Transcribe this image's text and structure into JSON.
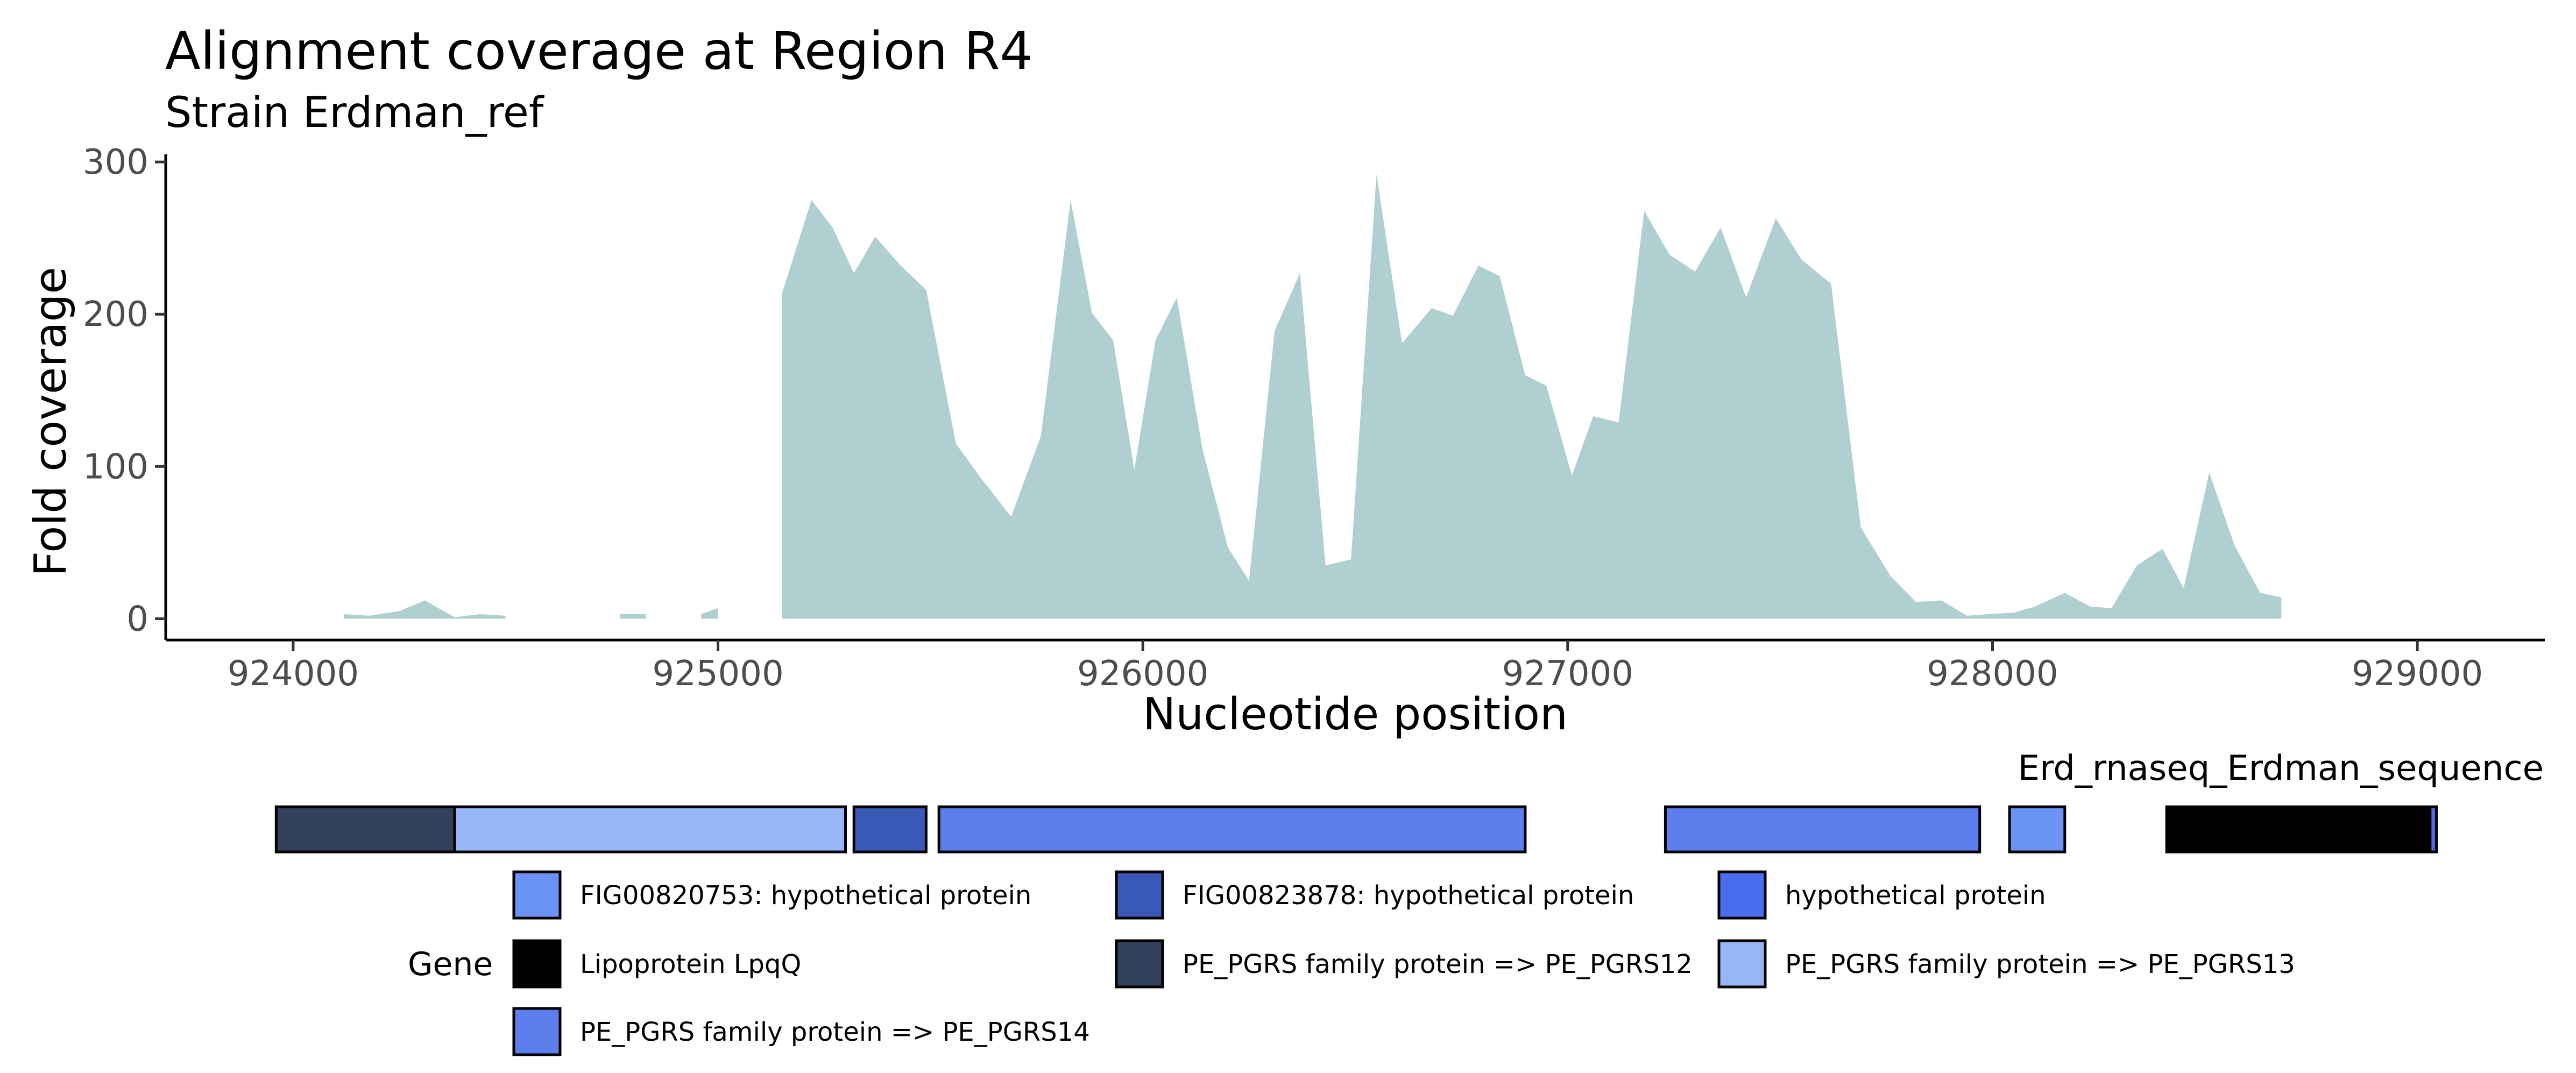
{
  "chart_data": {
    "type": "area",
    "title": "Alignment coverage at Region R4",
    "subtitle": "Strain Erdman_ref",
    "xlabel": "Nucleotide position",
    "ylabel": "Fold coverage",
    "xlim": [
      923700,
      929300
    ],
    "ylim": [
      -14,
      305
    ],
    "xticks": [
      {
        "value": 924000,
        "label": "924000"
      },
      {
        "value": 925000,
        "label": "925000"
      },
      {
        "value": 926000,
        "label": "926000"
      },
      {
        "value": 927000,
        "label": "927000"
      },
      {
        "value": 928000,
        "label": "928000"
      },
      {
        "value": 929000,
        "label": "929000"
      }
    ],
    "yticks": [
      {
        "value": 0,
        "label": "0"
      },
      {
        "value": 100,
        "label": "100"
      },
      {
        "value": 200,
        "label": "200"
      },
      {
        "value": 300,
        "label": "300"
      }
    ],
    "grid": false,
    "fill_color": "#b0cfd1",
    "coverage_segments": [
      [
        [
          924120,
          3
        ],
        [
          924180,
          2
        ],
        [
          924250,
          5
        ],
        [
          924310,
          12
        ],
        [
          924380,
          1
        ],
        [
          924440,
          3
        ],
        [
          924500,
          2
        ]
      ],
      [
        [
          924770,
          3
        ],
        [
          924830,
          3
        ]
      ],
      [
        [
          924960,
          3
        ],
        [
          925000,
          7
        ]
      ],
      [
        [
          925150,
          213
        ],
        [
          925220,
          275
        ],
        [
          925270,
          257
        ],
        [
          925320,
          227
        ],
        [
          925370,
          251
        ],
        [
          925430,
          232
        ],
        [
          925490,
          216
        ],
        [
          925560,
          115
        ],
        [
          925620,
          92
        ],
        [
          925690,
          67
        ],
        [
          925760,
          120
        ],
        [
          925830,
          275
        ],
        [
          925880,
          201
        ],
        [
          925930,
          183
        ],
        [
          925980,
          98
        ],
        [
          926030,
          183
        ],
        [
          926080,
          211
        ],
        [
          926140,
          112
        ],
        [
          926200,
          47
        ],
        [
          926250,
          25
        ],
        [
          926310,
          189
        ],
        [
          926370,
          227
        ],
        [
          926430,
          35
        ],
        [
          926490,
          39
        ],
        [
          926550,
          292
        ],
        [
          926610,
          181
        ],
        [
          926680,
          204
        ],
        [
          926730,
          199
        ],
        [
          926790,
          232
        ],
        [
          926840,
          225
        ],
        [
          926900,
          160
        ],
        [
          926950,
          153
        ],
        [
          927010,
          94
        ],
        [
          927060,
          133
        ],
        [
          927120,
          129
        ],
        [
          927180,
          268
        ],
        [
          927240,
          239
        ],
        [
          927300,
          228
        ],
        [
          927360,
          257
        ],
        [
          927420,
          211
        ],
        [
          927490,
          263
        ],
        [
          927550,
          236
        ],
        [
          927620,
          220
        ],
        [
          927690,
          60
        ],
        [
          927760,
          28
        ],
        [
          927820,
          11
        ],
        [
          927880,
          12
        ],
        [
          927940,
          2
        ],
        [
          927990,
          3
        ],
        [
          928050,
          4
        ],
        [
          928100,
          8
        ],
        [
          928170,
          17
        ],
        [
          928230,
          8
        ],
        [
          928280,
          7
        ],
        [
          928340,
          35
        ],
        [
          928400,
          46
        ],
        [
          928450,
          20
        ],
        [
          928510,
          96
        ],
        [
          928570,
          48
        ],
        [
          928630,
          17
        ],
        [
          928680,
          14
        ]
      ]
    ],
    "track": {
      "label": "Erd_rnaseq_Erdman_sequence",
      "genes": [
        {
          "start": 923960,
          "end": 924380,
          "color": "#33425c"
        },
        {
          "start": 924380,
          "end": 925300,
          "color": "#98b6f7"
        },
        {
          "start": 925320,
          "end": 925490,
          "color": "#3a58b5"
        },
        {
          "start": 925520,
          "end": 926900,
          "color": "#5b7fec"
        },
        {
          "start": 927230,
          "end": 927970,
          "color": "#5b7fec"
        },
        {
          "start": 928040,
          "end": 928170,
          "color": "#6a93f5"
        },
        {
          "start": 928410,
          "end": 929030,
          "color": "#000000"
        },
        {
          "start": 929030,
          "end": 929045,
          "color": "#4a6cf0"
        }
      ]
    },
    "legend": {
      "title": "Gene",
      "placement": "bottom",
      "items": [
        {
          "label": "FIG00820753: hypothetical protein",
          "color": "#6a93f5"
        },
        {
          "label": "FIG00823878: hypothetical protein",
          "color": "#3a58b5"
        },
        {
          "label": "hypothetical protein",
          "color": "#4a6cf0"
        },
        {
          "label": "Lipoprotein LpqQ",
          "color": "#000000"
        },
        {
          "label": "PE_PGRS family protein => PE_PGRS12",
          "color": "#33425c"
        },
        {
          "label": "PE_PGRS family protein => PE_PGRS13",
          "color": "#98b6f7"
        },
        {
          "label": "PE_PGRS family protein => PE_PGRS14",
          "color": "#5b7fec"
        }
      ]
    }
  }
}
